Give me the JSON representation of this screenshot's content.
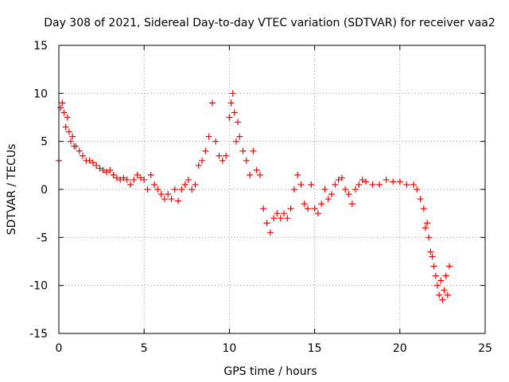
{
  "chart_data": {
    "type": "scatter",
    "title": "Day 308 of 2021, Sidereal Day-to-day VTEC variation (SDTVAR) for receiver vaa2",
    "xlabel": "GPS time / hours",
    "ylabel": "SDTVAR / TECUs",
    "xlim": [
      0,
      25
    ],
    "ylim": [
      -15,
      15
    ],
    "xticks": [
      0,
      5,
      10,
      15,
      20,
      25
    ],
    "yticks": [
      -15,
      -10,
      -5,
      0,
      5,
      10,
      15
    ],
    "grid": true,
    "marker": "+",
    "series_color": "#ff0000",
    "series": [
      {
        "name": "SDTVAR",
        "x": [
          0.0,
          0.1,
          0.2,
          0.3,
          0.4,
          0.5,
          0.6,
          0.7,
          0.8,
          0.9,
          1.0,
          1.2,
          1.4,
          1.6,
          1.8,
          2.0,
          2.2,
          2.4,
          2.6,
          2.8,
          3.0,
          3.2,
          3.4,
          3.6,
          3.8,
          4.0,
          4.2,
          4.4,
          4.6,
          4.8,
          5.0,
          5.2,
          5.4,
          5.6,
          5.8,
          6.0,
          6.2,
          6.4,
          6.6,
          6.8,
          7.0,
          7.2,
          7.4,
          7.6,
          7.8,
          8.0,
          8.2,
          8.4,
          8.6,
          8.8,
          9.0,
          9.2,
          9.4,
          9.6,
          9.8,
          10.0,
          10.1,
          10.2,
          10.3,
          10.4,
          10.5,
          10.6,
          10.8,
          11.0,
          11.2,
          11.4,
          11.6,
          11.8,
          12.0,
          12.2,
          12.4,
          12.6,
          12.8,
          13.0,
          13.2,
          13.4,
          13.6,
          13.8,
          14.0,
          14.2,
          14.4,
          14.6,
          14.8,
          15.0,
          15.2,
          15.4,
          15.6,
          15.8,
          16.0,
          16.2,
          16.4,
          16.6,
          16.8,
          17.0,
          17.2,
          17.4,
          17.6,
          17.8,
          18.0,
          18.4,
          18.8,
          19.2,
          19.6,
          20.0,
          20.4,
          20.8,
          21.0,
          21.2,
          21.4,
          21.5,
          21.6,
          21.7,
          21.8,
          21.9,
          22.0,
          22.1,
          22.2,
          22.3,
          22.4,
          22.5,
          22.6,
          22.7,
          22.8,
          22.9
        ],
        "y": [
          3.0,
          8.5,
          9.0,
          8.0,
          6.5,
          7.5,
          6.0,
          5.0,
          5.5,
          4.5,
          4.5,
          4.0,
          3.5,
          3.0,
          3.0,
          2.8,
          2.5,
          2.2,
          2.0,
          1.8,
          2.0,
          1.5,
          1.2,
          1.0,
          1.2,
          1.0,
          0.5,
          1.0,
          1.5,
          1.2,
          1.0,
          0.0,
          1.5,
          0.5,
          0.0,
          -0.5,
          -1.0,
          -0.5,
          -1.0,
          0.0,
          -1.2,
          0.0,
          0.5,
          1.0,
          0.0,
          0.5,
          2.5,
          3.0,
          4.0,
          5.5,
          9.0,
          5.0,
          3.5,
          3.0,
          3.5,
          7.5,
          9.0,
          10.0,
          8.0,
          5.0,
          7.0,
          5.5,
          4.0,
          3.0,
          1.5,
          4.0,
          2.0,
          1.5,
          -2.0,
          -3.5,
          -4.5,
          -3.0,
          -2.5,
          -3.0,
          -2.5,
          -3.0,
          -2.0,
          0.0,
          1.5,
          0.5,
          -1.5,
          -2.0,
          0.5,
          -2.0,
          -2.5,
          -1.5,
          0.0,
          -1.0,
          -0.5,
          0.5,
          1.0,
          1.2,
          0.0,
          -0.5,
          -1.5,
          0.0,
          0.5,
          1.0,
          0.8,
          0.5,
          0.5,
          1.0,
          0.8,
          0.8,
          0.5,
          0.5,
          0.0,
          -1.0,
          -2.0,
          -4.0,
          -3.5,
          -5.0,
          -6.5,
          -7.0,
          -8.0,
          -9.0,
          -10.0,
          -11.0,
          -9.5,
          -11.5,
          -10.5,
          -9.0,
          -11.0,
          -8.0
        ]
      }
    ]
  }
}
